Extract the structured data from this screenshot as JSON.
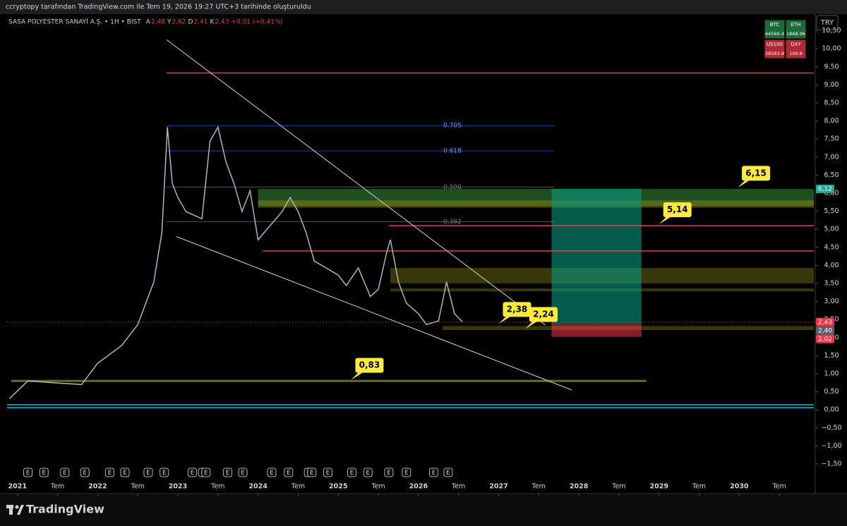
{
  "header": {
    "caption": "ccryptopy tarafından TradingView.com ile Tem 19, 2026 19:27 UTC+3 tarihinde oluşturuldu"
  },
  "legend": {
    "symbol": "SASA POLYESTER SANAYİ A.Ş. • 1H • BIST",
    "ohlc": [
      {
        "key": "A",
        "value": "2,48"
      },
      {
        "key": "Y",
        "value": "2,62"
      },
      {
        "key": "D",
        "value": "2,41"
      },
      {
        "key": "K",
        "value": "2,43"
      }
    ],
    "change": "+0,01 (+0,41%)"
  },
  "currency_button": "TRY",
  "tickers": [
    {
      "symbol": "BTC",
      "price": "64560.4"
    },
    {
      "symbol": "ETH",
      "price": "1868.96"
    },
    {
      "symbol": "US100",
      "price": "28583.9"
    },
    {
      "symbol": "DXY",
      "price": "100.8"
    }
  ],
  "footer": {
    "brand": "TradingView"
  },
  "events": {
    "label": "E",
    "x": [
      2021.13,
      2021.33,
      2021.59,
      2021.84,
      2022.15,
      2022.34,
      2022.63,
      2022.83,
      2023.18,
      2023.31,
      2023.35,
      2023.62,
      2023.81,
      2024.17,
      2024.38,
      2024.63,
      2024.67,
      2024.87,
      2025.17,
      2025.37,
      2025.63,
      2025.85,
      2026.19,
      2026.37
    ]
  },
  "chart_data": {
    "type": "line",
    "color": "#b2b5be",
    "x": [
      2020.9,
      2021.13,
      2021.5,
      2021.8,
      2022.0,
      2022.3,
      2022.5,
      2022.7,
      2022.8,
      2022.87,
      2022.93,
      2023.0,
      2023.1,
      2023.3,
      2023.4,
      2023.5,
      2023.6,
      2023.7,
      2023.8,
      2023.9,
      2024.0,
      2024.15,
      2024.3,
      2024.4,
      2024.5,
      2024.6,
      2024.7,
      2024.85,
      2025.0,
      2025.1,
      2025.25,
      2025.4,
      2025.5,
      2025.6,
      2025.65,
      2025.75,
      2025.85,
      2026.0,
      2026.1,
      2026.25,
      2026.35,
      2026.45,
      2026.55
    ],
    "values": [
      0.31,
      0.8,
      0.74,
      0.7,
      1.29,
      1.78,
      2.36,
      3.54,
      4.9,
      7.83,
      6.27,
      5.88,
      5.49,
      5.29,
      7.44,
      7.83,
      6.86,
      6.27,
      5.49,
      6.07,
      4.71,
      5.1,
      5.49,
      5.88,
      5.49,
      4.9,
      4.12,
      3.93,
      3.73,
      3.44,
      3.93,
      3.14,
      3.34,
      4.32,
      4.71,
      3.54,
      2.95,
      2.66,
      2.36,
      2.46,
      3.54,
      2.66,
      2.43
    ],
    "xlim": [
      2020.87,
      2030.93
    ],
    "ylim": [
      -1.93,
      10.96
    ],
    "xticks": [
      2021,
      {
        "value": 2021.5,
        "label": "Tem"
      },
      2022,
      {
        "value": 2022.5,
        "label": "Tem"
      },
      2023,
      {
        "value": 2023.5,
        "label": "Tem"
      },
      2024,
      {
        "value": 2024.5,
        "label": "Tem"
      },
      2025,
      {
        "value": 2025.5,
        "label": "Tem"
      },
      2026,
      {
        "value": 2026.5,
        "label": "Tem"
      },
      2027,
      {
        "value": 2027.5,
        "label": "Tem"
      },
      2028,
      {
        "value": 2028.5,
        "label": "Tem"
      },
      2029,
      {
        "value": 2029.5,
        "label": "Tem"
      },
      2030,
      {
        "value": 2030.5,
        "label": "Tem"
      }
    ],
    "yticks": [
      {
        "value": -1.5,
        "label": "−1,50"
      },
      {
        "value": -1,
        "label": "−1,00"
      },
      {
        "value": -0.5,
        "label": "−0,50"
      },
      {
        "value": 0,
        "label": "0,00"
      },
      {
        "value": 0.5,
        "label": "0,50"
      },
      {
        "value": 1,
        "label": "1,00"
      },
      {
        "value": 1.5,
        "label": "1,50"
      },
      {
        "value": 2,
        "label": "2,00"
      },
      {
        "value": 2.5,
        "label": "2,50"
      },
      {
        "value": 3,
        "label": "3,00"
      },
      {
        "value": 3.5,
        "label": "3,50"
      },
      {
        "value": 4,
        "label": "4,00"
      },
      {
        "value": 4.5,
        "label": "4,50"
      },
      {
        "value": 5,
        "label": "5,00"
      },
      {
        "value": 5.5,
        "label": "5,50"
      },
      {
        "value": 6,
        "label": "6,00"
      },
      {
        "value": 6.5,
        "label": "6,50"
      },
      {
        "value": 7,
        "label": "7,00"
      },
      {
        "value": 7.5,
        "label": "7,50"
      },
      {
        "value": 8,
        "label": "8,00"
      },
      {
        "value": 8.5,
        "label": "8,50"
      },
      {
        "value": 9,
        "label": "9,00"
      },
      {
        "value": 9.5,
        "label": "9,50"
      },
      {
        "value": 10,
        "label": "10,00"
      },
      {
        "value": 10.5,
        "label": "10,50"
      }
    ],
    "zones": [
      {
        "low": 5.65,
        "high": 6.12,
        "x0": 2024.0,
        "color": "rgba(56,142,60,0.55)"
      },
      {
        "low": 5.6,
        "high": 5.8,
        "x0": 2024.0,
        "color": "rgba(130,130,20,0.55)"
      },
      {
        "low": 3.5,
        "high": 3.93,
        "x0": 2025.65,
        "color": "rgba(110,110,20,0.5)"
      },
      {
        "low": 3.28,
        "high": 3.36,
        "x0": 2025.65,
        "color": "rgba(110,110,20,0.5)"
      },
      {
        "low": 2.21,
        "high": 2.32,
        "x0": 2026.3,
        "color": "rgba(110,110,20,0.5)"
      }
    ],
    "levels": [
      {
        "value": 9.33,
        "x0": 2022.86,
        "x1": 2030.93,
        "color": "#f23645"
      },
      {
        "value": 5.1,
        "x0": 2025.63,
        "x1": 2030.93,
        "color": "#f23645"
      },
      {
        "value": 4.4,
        "x0": 2024.06,
        "x1": 2030.93,
        "color": "#f23645"
      },
      {
        "value": 0.8,
        "x0": 2020.92,
        "x1": 2028.84,
        "color": "#6b6b1e"
      },
      {
        "value": 0.14,
        "x0": 2020.87,
        "x1": 2030.93,
        "color": "#00bcd4"
      },
      {
        "value": 0.06,
        "x0": 2020.87,
        "x1": 2030.93,
        "color": "#00bcd4"
      }
    ],
    "fib_levels": [
      {
        "label": "0.705",
        "value": 7.87
      },
      {
        "label": "0.618",
        "value": 7.17
      },
      {
        "label": "0.500",
        "value": 6.17
      },
      {
        "label": "0.382",
        "value": 5.21
      }
    ],
    "fib_range": [
      2022.86,
      2027.3
    ],
    "trendlines": [
      {
        "x": [
          2022.86,
          2027.58
        ],
        "y": [
          10.25,
          2.35
        ]
      },
      {
        "x": [
          2022.98,
          2027.91
        ],
        "y": [
          4.8,
          0.55
        ]
      }
    ],
    "position": {
      "x0": 2027.66,
      "x1": 2028.78,
      "target": 6.12,
      "entry": 2.38,
      "stop": 2.02
    },
    "callouts": [
      {
        "label": "6,15",
        "value": 6.15,
        "x": 2029.98
      },
      {
        "label": "5,14",
        "value": 5.14,
        "x": 2029.0
      },
      {
        "label": "2,38",
        "value": 2.38,
        "x": 2027.0
      },
      {
        "label": "2,24",
        "value": 2.24,
        "x": 2027.33
      },
      {
        "label": "0,83",
        "value": 0.83,
        "x": 2025.16
      }
    ],
    "price_tags": [
      {
        "value": 6.12,
        "label": "6,12",
        "color": "#22ab94"
      },
      {
        "value": 2.43,
        "label": "2,43",
        "color": "#f23645"
      },
      {
        "value": 2.4,
        "label": "2,40",
        "color": "#5d606b"
      },
      {
        "value": 2.02,
        "label": "2,02",
        "color": "#f23645"
      }
    ]
  }
}
